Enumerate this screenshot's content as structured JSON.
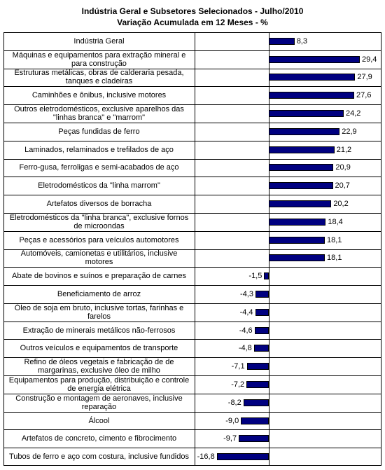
{
  "chart_data": {
    "type": "bar",
    "title": "Indústria Geral e Subsetores Selecionados - Julho/2010",
    "subtitle": "Variação Acumulada em 12 Meses - %",
    "color": "#000080",
    "categories": [
      "Indústria Geral",
      "Máquinas e equipamentos para extração mineral e para construção",
      "Estruturas metálicas, obras de calderaria pesada, tanques e cladeiras",
      "Caminhões e ônibus, inclusive motores",
      "Outros eletrodomésticos, exclusive aparelhos das \"linhas branca\" e \"marrom\"",
      "Peças fundidas de ferro",
      "Laminados, relaminados e trefilados de aço",
      "Ferro-gusa, ferroligas e semi-acabados de aço",
      "Eletrodomésticos da \"linha marrom\"",
      "Artefatos diversos de borracha",
      "Eletrodomésticos da \"linha branca\", exclusive fornos de microondas",
      "Peças e acessórios para veículos automotores",
      "Automóveis, camionetas e utilitários, inclusive motores",
      "Abate de bovinos e suínos e preparação de carnes",
      "Beneficiamento de arroz",
      "Óleo de soja em bruto, inclusive tortas, farinhas e farelos",
      "Extração de minerais metálicos não-ferrosos",
      "Outros veículos e equipamentos de transporte",
      "Refino de óleos vegetais e fabricação de de margarinas, exclusive óleo de milho",
      "Equipamentos para produção, distribuição e controle de energia elétrica",
      "Construção e montagem de aeronaves, inclusive reparação",
      "Álcool",
      "Artefatos de concreto, cimento e fibrocimento",
      "Tubos de ferro e aço com costura, inclusive fundidos"
    ],
    "values": [
      8.3,
      29.4,
      27.9,
      27.6,
      24.2,
      22.9,
      21.2,
      20.9,
      20.7,
      20.2,
      18.4,
      18.1,
      18.1,
      -1.5,
      -4.3,
      -4.4,
      -4.6,
      -4.8,
      -7.1,
      -7.2,
      -8.2,
      -9.0,
      -9.7,
      -16.8
    ],
    "value_labels": [
      "8,3",
      "29,4",
      "27,9",
      "27,6",
      "24,2",
      "22,9",
      "21,2",
      "20,9",
      "20,7",
      "20,2",
      "18,4",
      "18,1",
      "18,1",
      "-1,5",
      "-4,3",
      "-4,4",
      "-4,6",
      "-4,8",
      "-7,1",
      "-7,2",
      "-8,2",
      "-9,0",
      "-9,7",
      "-16,8"
    ]
  }
}
